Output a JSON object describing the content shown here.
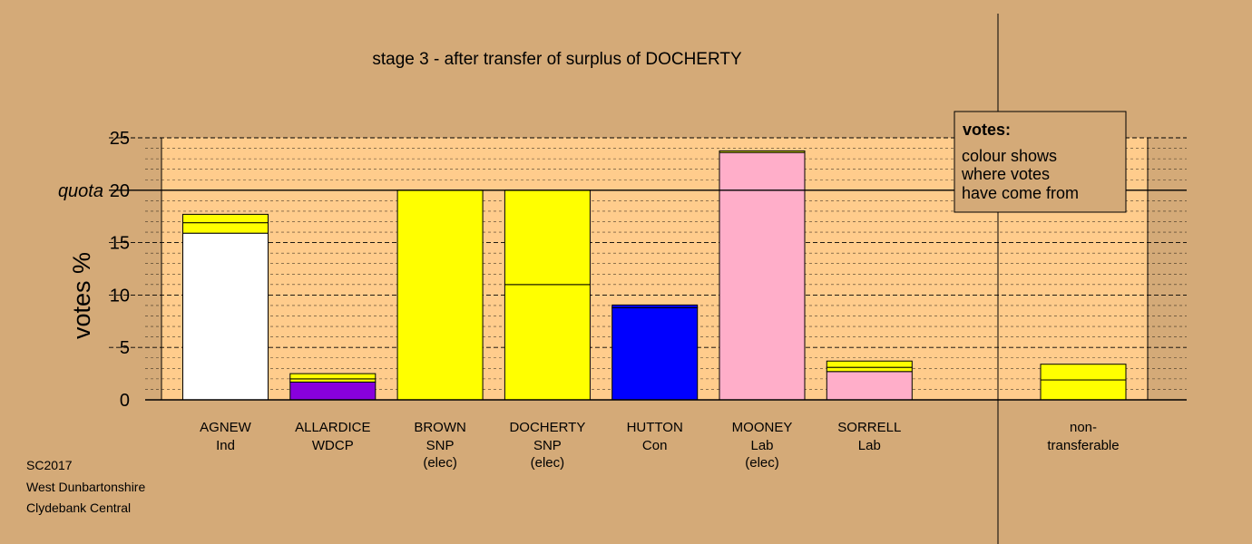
{
  "chart_data": {
    "type": "bar",
    "title": "stage 3 - after transfer of surplus of DOCHERTY",
    "ylabel": "votes %",
    "ylim": [
      0,
      25
    ],
    "yticks": [
      0,
      5,
      10,
      15,
      20,
      25
    ],
    "quota": {
      "label": "quota",
      "value": 20
    },
    "grid": "dashed minor gridlines every 1%",
    "legend": {
      "position": "top-right",
      "title": "votes:",
      "lines": [
        "colour shows",
        "where votes",
        "have come from"
      ]
    },
    "colors": {
      "Ind": "#ffffff",
      "WDCP": "#8800dd",
      "SNP": "#ffff00",
      "Con": "#0000ff",
      "Lab": "#ffaec9",
      "plot_background": "#ffcc8c",
      "page_background": "#d4aa78"
    },
    "candidates": [
      {
        "name": "AGNEW",
        "party": "Ind",
        "note": "",
        "segments": [
          {
            "from": "Ind",
            "value": 15.9
          },
          {
            "from": "SNP",
            "value": 1.0
          },
          {
            "from": "SNP",
            "value": 0.8
          }
        ]
      },
      {
        "name": "ALLARDICE",
        "party": "WDCP",
        "note": "",
        "segments": [
          {
            "from": "WDCP",
            "value": 1.7
          },
          {
            "from": "SNP",
            "value": 0.3
          },
          {
            "from": "SNP",
            "value": 0.5
          }
        ]
      },
      {
        "name": "BROWN",
        "party": "SNP",
        "note": "(elec)",
        "segments": [
          {
            "from": "SNP",
            "value": 20.0
          }
        ]
      },
      {
        "name": "DOCHERTY",
        "party": "SNP",
        "note": "(elec)",
        "segments": [
          {
            "from": "SNP",
            "value": 11.0
          },
          {
            "from": "SNP",
            "value": 9.0
          }
        ]
      },
      {
        "name": "HUTTON",
        "party": "Con",
        "note": "",
        "segments": [
          {
            "from": "Con",
            "value": 8.8
          },
          {
            "from": "Con",
            "value": 0.25
          }
        ]
      },
      {
        "name": "MOONEY",
        "party": "Lab",
        "note": "(elec)",
        "segments": [
          {
            "from": "Lab",
            "value": 23.6
          },
          {
            "from": "SNP",
            "value": 0.15
          }
        ]
      },
      {
        "name": "SORRELL",
        "party": "Lab",
        "note": "",
        "segments": [
          {
            "from": "Lab",
            "value": 2.7
          },
          {
            "from": "SNP",
            "value": 0.4
          },
          {
            "from": "SNP",
            "value": 0.6
          }
        ]
      }
    ],
    "non_transferable": {
      "label_line1": "non-",
      "label_line2": "transferable",
      "segments": [
        {
          "from": "SNP",
          "value": 1.9
        },
        {
          "from": "SNP",
          "value": 1.5
        }
      ]
    }
  },
  "footer": {
    "line1": "SC2017",
    "line2": "West Dunbartonshire",
    "line3": "Clydebank Central"
  }
}
